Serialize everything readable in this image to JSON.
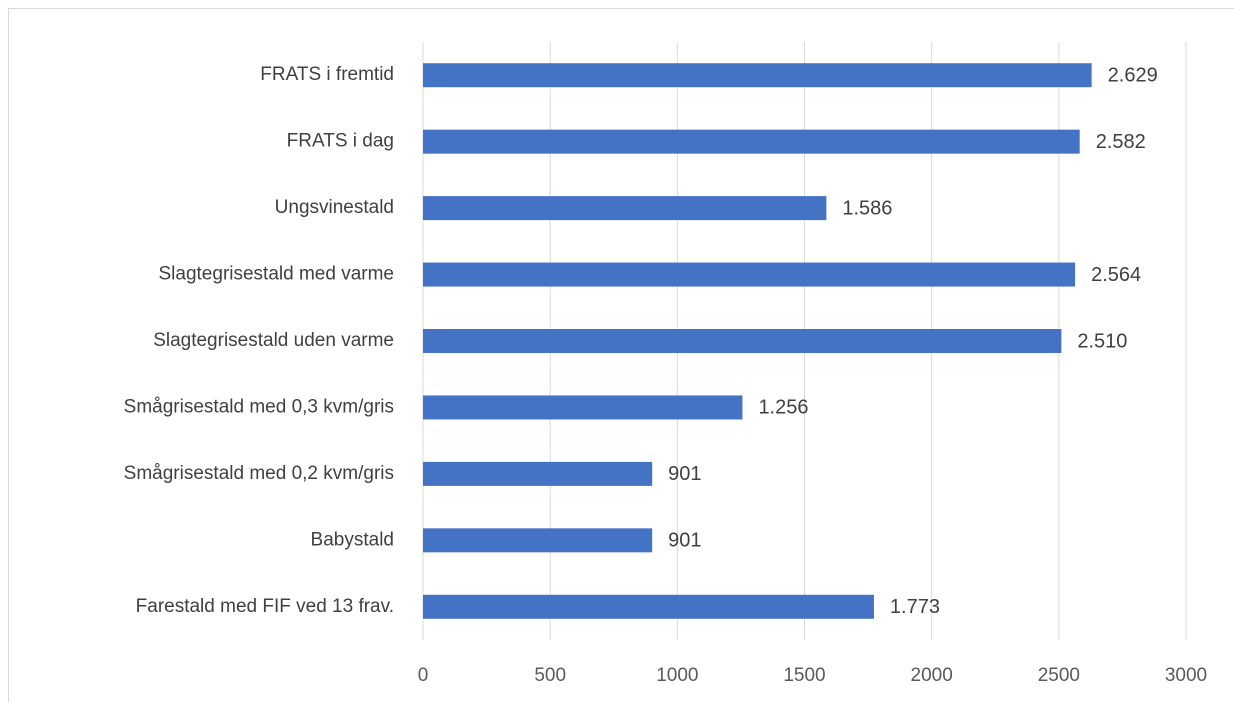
{
  "chart_data": {
    "type": "barh",
    "categories": [
      "FRATS i fremtid",
      "FRATS i dag",
      "Ungsvinestald",
      "Slagtegrisestald med varme",
      "Slagtegrisestald uden varme",
      "Smågrisestald med 0,3 kvm/gris",
      "Smågrisestald med 0,2 kvm/gris",
      "Babystald",
      "Farestald med FIF ved 13 frav."
    ],
    "values": [
      2629,
      2582,
      1586,
      2564,
      2510,
      1256,
      901,
      901,
      1773
    ],
    "value_labels": [
      "2.629",
      "2.582",
      "1.586",
      "2.564",
      "2.510",
      "1.256",
      "901",
      "901",
      "1.773"
    ],
    "color": "#4472c4",
    "xlim": [
      0,
      3000
    ],
    "xticks": [
      0,
      500,
      1000,
      1500,
      2000,
      2500,
      3000
    ],
    "grid": true
  }
}
